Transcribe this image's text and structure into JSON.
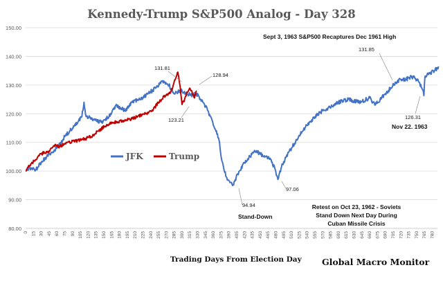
{
  "chart_data": {
    "type": "line",
    "title": "Kennedy-Trump  S&P500 Analog  - Day 328",
    "xlabel": "Trading  Days From  Election Day",
    "ylabel": "",
    "xlim": [
      0,
      790
    ],
    "ylim": [
      80,
      150
    ],
    "yticks": [
      "80.00",
      "90.00",
      "100.00",
      "110.00",
      "120.00",
      "130.00",
      "140.00",
      "150.00"
    ],
    "x_tick_step": 15,
    "x_tick_max": 780,
    "legend": [
      "JFK",
      "Trump"
    ],
    "brand": "Global Macro Monitor",
    "colors": {
      "jfk": "#4472c4",
      "trump": "#c00000"
    },
    "series": [
      {
        "name": "JFK",
        "points": [
          [
            0,
            100
          ],
          [
            10,
            101
          ],
          [
            20,
            100.5
          ],
          [
            30,
            103
          ],
          [
            45,
            106
          ],
          [
            60,
            108
          ],
          [
            75,
            112
          ],
          [
            90,
            115
          ],
          [
            100,
            117
          ],
          [
            108,
            119
          ],
          [
            112,
            124
          ],
          [
            116,
            119
          ],
          [
            130,
            118
          ],
          [
            145,
            117
          ],
          [
            160,
            119
          ],
          [
            175,
            123
          ],
          [
            190,
            121
          ],
          [
            205,
            124
          ],
          [
            220,
            125
          ],
          [
            235,
            127
          ],
          [
            250,
            129
          ],
          [
            262,
            131.5
          ],
          [
            275,
            130
          ],
          [
            285,
            127
          ],
          [
            290,
            127.5
          ],
          [
            300,
            128
          ],
          [
            310,
            127
          ],
          [
            320,
            126.5
          ],
          [
            328,
            127
          ],
          [
            340,
            124
          ],
          [
            350,
            121
          ],
          [
            360,
            116
          ],
          [
            368,
            113
          ],
          [
            372,
            110
          ],
          [
            376,
            104
          ],
          [
            380,
            101
          ],
          [
            385,
            98
          ],
          [
            392,
            96
          ],
          [
            397,
            94.94
          ],
          [
            402,
            97
          ],
          [
            410,
            100
          ],
          [
            420,
            103
          ],
          [
            430,
            105
          ],
          [
            440,
            107
          ],
          [
            450,
            106
          ],
          [
            460,
            105
          ],
          [
            470,
            104
          ],
          [
            478,
            101
          ],
          [
            484,
            97.06
          ],
          [
            490,
            101
          ],
          [
            500,
            105
          ],
          [
            510,
            108
          ],
          [
            520,
            111
          ],
          [
            540,
            116
          ],
          [
            560,
            120
          ],
          [
            580,
            122
          ],
          [
            600,
            124
          ],
          [
            620,
            125
          ],
          [
            640,
            124
          ],
          [
            660,
            125.5
          ],
          [
            670,
            123
          ],
          [
            680,
            125
          ],
          [
            690,
            127
          ],
          [
            700,
            129
          ],
          [
            710,
            131
          ],
          [
            720,
            131.85
          ],
          [
            730,
            132
          ],
          [
            740,
            133
          ],
          [
            750,
            132
          ],
          [
            755,
            131
          ],
          [
            760,
            129
          ],
          [
            764,
            126.31
          ],
          [
            766,
            133
          ],
          [
            775,
            134
          ],
          [
            785,
            135
          ],
          [
            792,
            136.5
          ]
        ]
      },
      {
        "name": "Trump",
        "points": [
          [
            0,
            100
          ],
          [
            10,
            102.5
          ],
          [
            20,
            104
          ],
          [
            30,
            106
          ],
          [
            45,
            107
          ],
          [
            55,
            109
          ],
          [
            65,
            108.5
          ],
          [
            80,
            110
          ],
          [
            95,
            110.5
          ],
          [
            110,
            111
          ],
          [
            125,
            112
          ],
          [
            140,
            114
          ],
          [
            155,
            116
          ],
          [
            170,
            117
          ],
          [
            185,
            117.5
          ],
          [
            200,
            118
          ],
          [
            215,
            119
          ],
          [
            230,
            120
          ],
          [
            245,
            121.5
          ],
          [
            255,
            124
          ],
          [
            265,
            126
          ],
          [
            275,
            127
          ],
          [
            282,
            129
          ],
          [
            287,
            131.81
          ],
          [
            292,
            134.5
          ],
          [
            296,
            130
          ],
          [
            300,
            123.21
          ],
          [
            305,
            125
          ],
          [
            310,
            127.5
          ],
          [
            315,
            128.94
          ],
          [
            320,
            127
          ],
          [
            324,
            125.5
          ],
          [
            328,
            128
          ]
        ]
      }
    ],
    "annotations": {
      "jfk_peak": "131.81",
      "trump_peak": "128.94",
      "trump_low": "123.21",
      "low_1962": "94.94",
      "stand_down": "Stand-Down",
      "low_oct": "97.06",
      "retest_1": "Retest on Oct 23, 1962 - Soviets",
      "retest_2": "Stand Down Next Day During",
      "retest_3": "Cuban Missile Crisis",
      "sept_note": "Sept 3, 1963  S&P500 Recaptures Dec 1961 High",
      "high_1963": "131.85",
      "nov_value": "126.31",
      "nov_label": "Nov 22. 1963"
    }
  }
}
